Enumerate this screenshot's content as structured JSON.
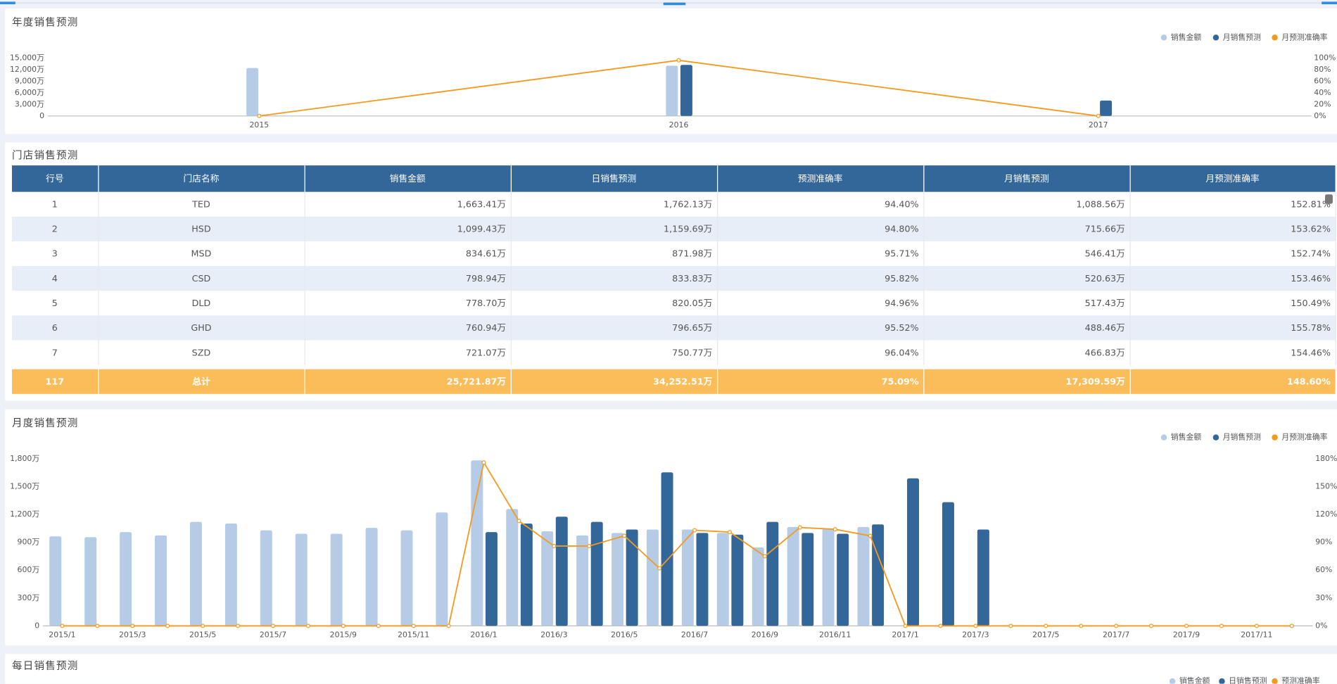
{
  "chart_data": [
    {
      "type": "bar",
      "title": "年度销售预测",
      "categories": [
        "2015",
        "2016",
        "2017"
      ],
      "series": [
        {
          "name": "销售金额",
          "color": "#b5cbe6",
          "values": [
            12400,
            13000,
            null
          ]
        },
        {
          "name": "月销售预测",
          "color": "#336699",
          "values": [
            null,
            13200,
            4000
          ]
        },
        {
          "name": "月预测准确率",
          "color": "#f39a1e",
          "type": "line",
          "axis": "y2",
          "values": [
            0,
            96,
            0
          ]
        }
      ],
      "ylim": [
        0,
        15000
      ],
      "yticks": [
        0,
        {
          "value": 3000,
          "label": "3,000万"
        },
        {
          "value": 6000,
          "label": "6,000万"
        },
        {
          "value": 9000,
          "label": "9,000万"
        },
        {
          "value": 12000,
          "label": "12,000万"
        },
        {
          "value": 15000,
          "label": "15,000万"
        }
      ],
      "y2lim": [
        0,
        100
      ],
      "y2ticks": [
        {
          "value": 0,
          "label": "0%"
        },
        {
          "value": 20,
          "label": "20%"
        },
        {
          "value": 40,
          "label": "40%"
        },
        {
          "value": 60,
          "label": "60%"
        },
        {
          "value": 80,
          "label": "80%"
        },
        {
          "value": 100,
          "label": "100%"
        }
      ],
      "legend": "top-right"
    },
    {
      "type": "bar",
      "title": "月度销售预测",
      "categories": [
        "2015/1",
        null,
        "2015/3",
        null,
        "2015/5",
        null,
        "2015/7",
        null,
        "2015/9",
        null,
        "2015/11",
        null,
        "2016/1",
        null,
        "2016/3",
        null,
        "2016/5",
        null,
        "2016/7",
        null,
        "2016/9",
        null,
        "2016/11",
        null,
        "2017/1",
        null,
        "2017/3",
        null,
        "2017/5",
        null,
        "2017/7",
        null,
        "2017/9",
        null,
        "2017/11",
        null
      ],
      "series": [
        {
          "name": "销售金额",
          "color": "#b5cbe6",
          "values": [
            964,
            955,
            1010,
            974,
            1120,
            1102,
            1029,
            992,
            992,
            1056,
            1029,
            1221,
            1782,
            1258,
            1019,
            974,
            1001,
            1038,
            1038,
            1001,
            845,
            1065,
            1047,
            1065,
            null,
            null,
            null,
            null,
            null,
            null,
            null,
            null,
            null,
            null,
            null,
            null
          ]
        },
        {
          "name": "月销售预测",
          "color": "#336699",
          "values": [
            null,
            null,
            null,
            null,
            null,
            null,
            null,
            null,
            null,
            null,
            null,
            null,
            1010,
            1102,
            1176,
            1120,
            1038,
            1653,
            1001,
            983,
            1120,
            1001,
            992,
            1093,
            1589,
            1332,
            1038,
            null,
            null,
            null,
            null,
            null,
            null,
            null,
            null,
            null
          ]
        },
        {
          "name": "月预测准确率",
          "color": "#f39a1e",
          "type": "line",
          "axis": "y2",
          "values": [
            0,
            0,
            0,
            0,
            0,
            0,
            0,
            0,
            0,
            0,
            0,
            0,
            176,
            113,
            86,
            86,
            97,
            62,
            103,
            101,
            75,
            106,
            104,
            97,
            0,
            0,
            0,
            0,
            0,
            0,
            0,
            0,
            0,
            0,
            0,
            0
          ]
        }
      ],
      "ylim": [
        0,
        1800
      ],
      "yticks": [
        0,
        {
          "value": 300,
          "label": "300万"
        },
        {
          "value": 600,
          "label": "600万"
        },
        {
          "value": 900,
          "label": "900万"
        },
        {
          "value": 1200,
          "label": "1,200万"
        },
        {
          "value": 1500,
          "label": "1,500万"
        },
        {
          "value": 1800,
          "label": "1,800万"
        }
      ],
      "y2lim": [
        0,
        180
      ],
      "y2ticks": [
        {
          "value": 0,
          "label": "0%"
        },
        {
          "value": 30,
          "label": "30%"
        },
        {
          "value": 60,
          "label": "60%"
        },
        {
          "value": 90,
          "label": "90%"
        },
        {
          "value": 120,
          "label": "120%"
        },
        {
          "value": 150,
          "label": "150%"
        },
        {
          "value": 180,
          "label": "180%"
        }
      ],
      "legend": "top-right"
    },
    {
      "type": "bar",
      "title": "每日销售预测",
      "series": [
        {
          "name": "销售金额",
          "color": "#b5cbe6"
        },
        {
          "name": "日销售预测",
          "color": "#336699"
        },
        {
          "name": "预测准确率",
          "color": "#f39a1e",
          "type": "line"
        }
      ],
      "legend": "top-right"
    }
  ],
  "table": {
    "title": "门店销售预测",
    "columns": [
      "行号",
      "门店名称",
      "销售金额",
      "日销售预测",
      "预测准确率",
      "月销售预测",
      "月预测准确率"
    ],
    "rows": [
      [
        "1",
        "TED",
        "1,663.41万",
        "1,762.13万",
        "94.40%",
        "1,088.56万",
        "152.81%"
      ],
      [
        "2",
        "HSD",
        "1,099.43万",
        "1,159.69万",
        "94.80%",
        "715.66万",
        "153.62%"
      ],
      [
        "3",
        "MSD",
        "834.61万",
        "871.98万",
        "95.71%",
        "546.41万",
        "152.74%"
      ],
      [
        "4",
        "CSD",
        "798.94万",
        "833.83万",
        "95.82%",
        "520.63万",
        "153.46%"
      ],
      [
        "5",
        "DLD",
        "778.70万",
        "820.05万",
        "94.96%",
        "517.43万",
        "150.49%"
      ],
      [
        "6",
        "GHD",
        "760.94万",
        "796.65万",
        "95.52%",
        "488.46万",
        "155.78%"
      ],
      [
        "7",
        "SZD",
        "721.07万",
        "750.77万",
        "96.04%",
        "466.83万",
        "154.46%"
      ]
    ],
    "total": [
      "117",
      "总计",
      "25,721.87万",
      "34,252.51万",
      "75.09%",
      "17,309.59万",
      "148.60%"
    ]
  }
}
